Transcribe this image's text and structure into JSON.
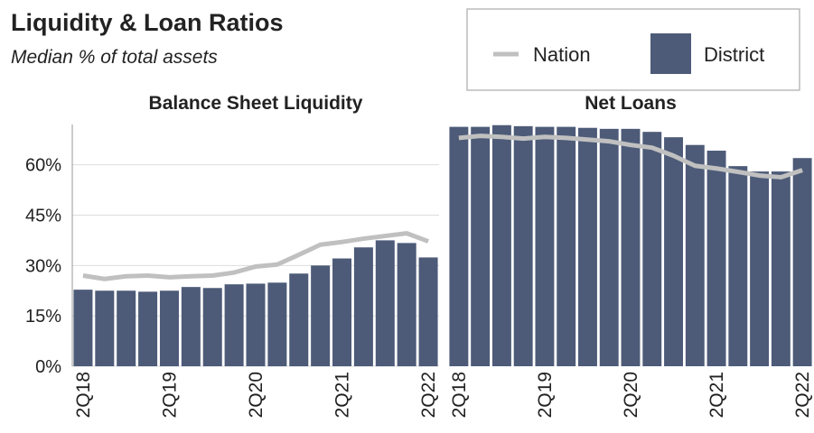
{
  "title": "Liquidity & Loan Ratios",
  "subtitle": "Median % of total assets",
  "chart_data": [
    {
      "type": "bar",
      "title": "Balance Sheet Liquidity",
      "categories": [
        "2Q18",
        null,
        null,
        null,
        "2Q19",
        null,
        null,
        null,
        "2Q20",
        null,
        null,
        null,
        "2Q21",
        null,
        null,
        null,
        "2Q22"
      ],
      "series": [
        {
          "name": "District",
          "type": "bar",
          "color": "#4d5b78",
          "values": [
            22.8,
            22.5,
            22.5,
            22.2,
            22.5,
            23.6,
            23.3,
            24.4,
            24.6,
            24.9,
            27.6,
            30,
            32.1,
            35.4,
            37.5,
            36.7,
            32.4
          ]
        },
        {
          "name": "Nation",
          "type": "line",
          "color": "#c0c0c0",
          "values": [
            27,
            26,
            26.8,
            27,
            26.5,
            26.8,
            27,
            27.9,
            29.7,
            30.3,
            33.2,
            36.2,
            37,
            38,
            38.8,
            39.6,
            37.2
          ]
        }
      ],
      "ylim": [
        0,
        72
      ],
      "yticks": [
        {
          "value": 0,
          "label": "0%"
        },
        {
          "value": 15,
          "label": "15%"
        },
        {
          "value": 30,
          "label": "30%"
        },
        {
          "value": 45,
          "label": "45%"
        },
        {
          "value": 60,
          "label": "60%"
        }
      ],
      "grid": true
    },
    {
      "type": "bar",
      "title": "Net Loans",
      "categories": [
        "2Q18",
        null,
        null,
        null,
        "2Q19",
        null,
        null,
        null,
        "2Q20",
        null,
        null,
        null,
        "2Q21",
        null,
        null,
        null,
        "2Q22"
      ],
      "series": [
        {
          "name": "District",
          "type": "bar",
          "color": "#4d5b78",
          "values": [
            71.3,
            71.3,
            71.8,
            71.5,
            71.3,
            71.3,
            71,
            70.7,
            70.7,
            69.8,
            68.2,
            65.9,
            64.2,
            59.6,
            58,
            58,
            62
          ]
        },
        {
          "name": "Nation",
          "type": "line",
          "color": "#c0c0c0",
          "values": [
            68,
            68.6,
            68.3,
            67.8,
            68.3,
            68,
            67.5,
            67,
            65.9,
            65.1,
            62.7,
            59.7,
            58.9,
            57.9,
            56.8,
            56.3,
            58.4
          ]
        }
      ],
      "ylim": [
        0,
        72
      ]
    }
  ]
}
